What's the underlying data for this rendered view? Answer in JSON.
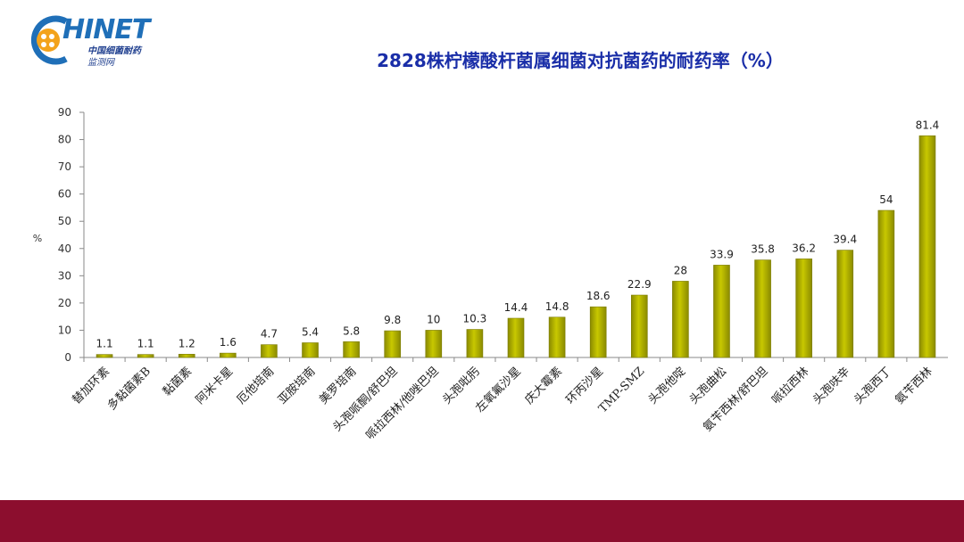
{
  "header": {
    "logo_name": "HINET",
    "logo_sub1": "中国细菌耐药",
    "logo_sub2": "监测网",
    "title": "2828株柠檬酸杆菌属细菌对抗菌药的耐药率（%）"
  },
  "colors": {
    "bar": "#c8c800",
    "bar_dark": "#8a8a00",
    "title": "#1a2ea8",
    "bottom_bar": "#8c0e2e"
  },
  "chart_data": {
    "type": "bar",
    "title": "2828株柠檬酸杆菌属细菌对抗菌药的耐药率（%）",
    "ylabel": "%",
    "xlabel": "",
    "ylim": [
      0,
      90
    ],
    "yticks": [
      0,
      10,
      20,
      30,
      40,
      50,
      60,
      70,
      80,
      90
    ],
    "grid": false,
    "categories": [
      "替加环素",
      "多黏菌素B",
      "黏菌素",
      "阿米卡星",
      "厄他培南",
      "亚胺培南",
      "美罗培南",
      "头孢哌酮/舒巴坦",
      "哌拉西林/他唑巴坦",
      "头孢吡肟",
      "左氧氟沙星",
      "庆大霉素",
      "环丙沙星",
      "TMP-SMZ",
      "头孢他啶",
      "头孢曲松",
      "氨苄西林/舒巴坦",
      "哌拉西林",
      "头孢呋辛",
      "头孢西丁",
      "氨苄西林"
    ],
    "values": [
      1.1,
      1.1,
      1.2,
      1.6,
      4.7,
      5.4,
      5.8,
      9.8,
      10,
      10.3,
      14.4,
      14.8,
      18.6,
      22.9,
      28,
      33.9,
      35.8,
      36.2,
      39.4,
      54,
      81.4
    ]
  }
}
